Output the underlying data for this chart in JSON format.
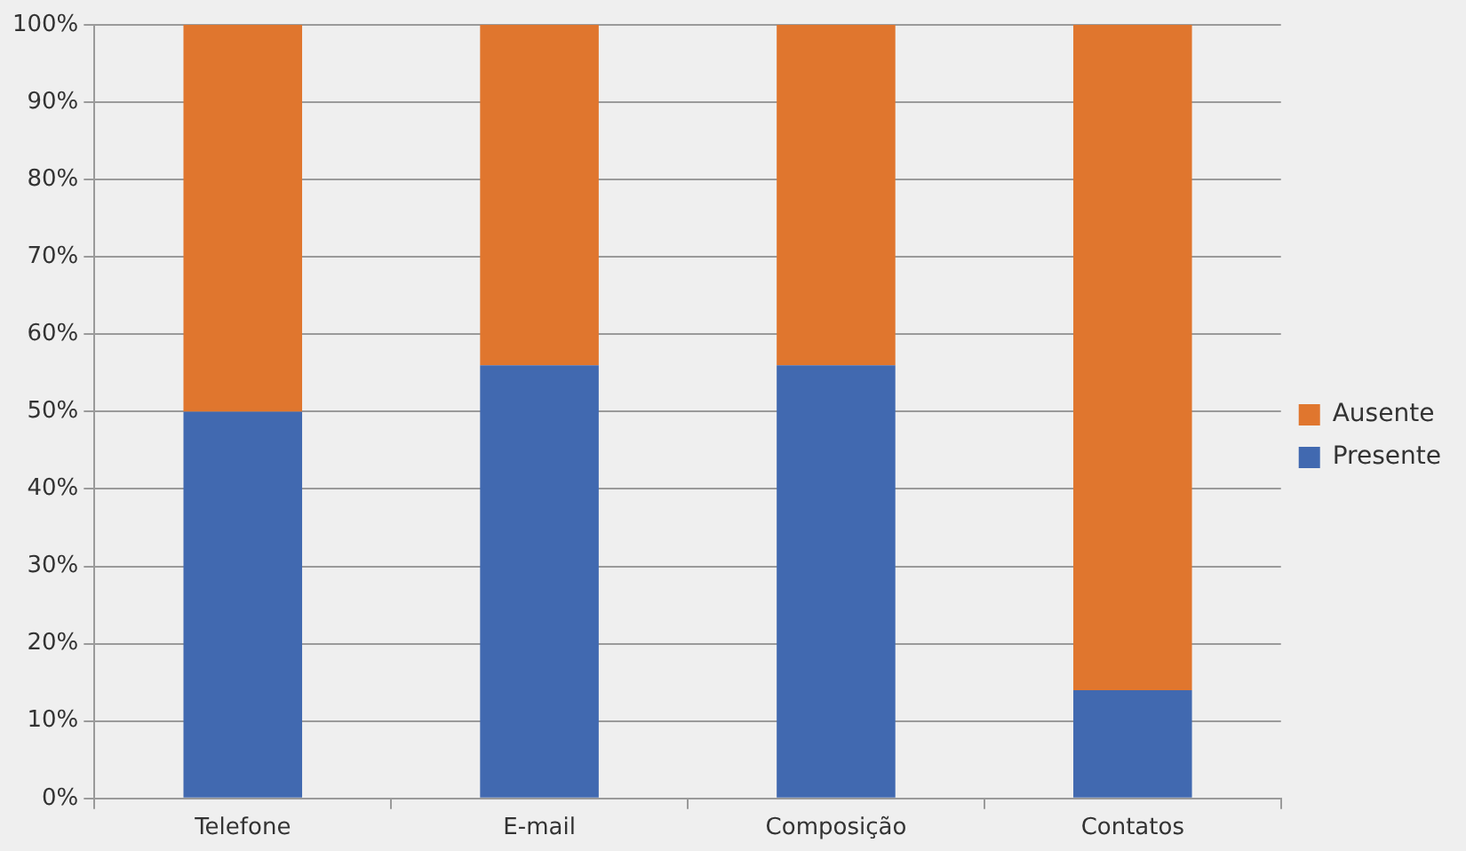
{
  "chart_data": {
    "type": "bar",
    "stacked": true,
    "categories": [
      "Telefone",
      "E-mail",
      "Composição",
      "Contatos"
    ],
    "series": [
      {
        "name": "Presente",
        "color": "#4169b0",
        "values": [
          50,
          56,
          56,
          14
        ]
      },
      {
        "name": "Ausente",
        "color": "#e0762e",
        "values": [
          50,
          44,
          44,
          86
        ]
      }
    ],
    "ylim": [
      0,
      100
    ],
    "yticks": [
      {
        "value": 0,
        "label": "0%"
      },
      {
        "value": 10,
        "label": "10%"
      },
      {
        "value": 20,
        "label": "20%"
      },
      {
        "value": 30,
        "label": "30%"
      },
      {
        "value": 40,
        "label": "40%"
      },
      {
        "value": 50,
        "label": "50%"
      },
      {
        "value": 60,
        "label": "60%"
      },
      {
        "value": 70,
        "label": "70%"
      },
      {
        "value": 80,
        "label": "80%"
      },
      {
        "value": 90,
        "label": "90%"
      },
      {
        "value": 100,
        "label": "100%"
      }
    ],
    "grid": "y",
    "legend": "right"
  }
}
